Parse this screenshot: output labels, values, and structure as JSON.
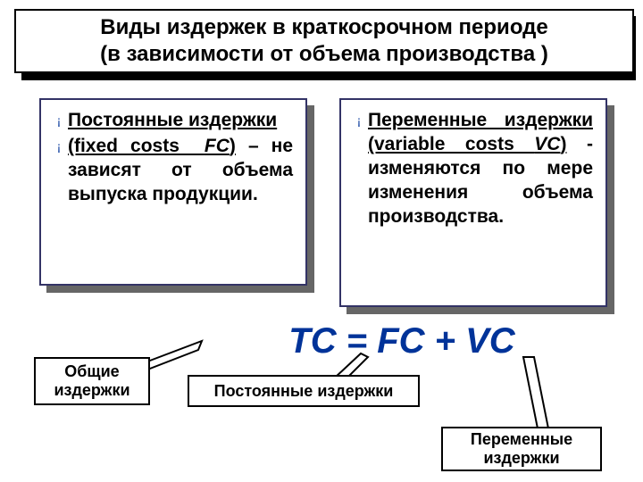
{
  "title": {
    "line1": "Виды издержек в краткосрочном периоде",
    "line2": "(в зависимости от объема производства )"
  },
  "left_box": {
    "b1_html": "<span class='u'>Постоянные издержки</span>",
    "b2_html": "<span class='u'>(fixed costs&nbsp; <i>FC</i>)</span> – не зависят от объема выпуска продукции."
  },
  "right_box": {
    "b1_html": "<span class='u'>Переменные издержки</span> <span class='u'>(variable costs <i>VC</i>)</span> - изменяются по мере изменения объема производства."
  },
  "formula": "TC = FC + VC",
  "callouts": {
    "tc": "Общие издержки",
    "fc": "Постоянные издержки",
    "vc": "Переменные издержки"
  },
  "colors": {
    "accent": "#003399",
    "border": "#333366",
    "shadow": "#666666",
    "title_shadow": "#000000"
  }
}
